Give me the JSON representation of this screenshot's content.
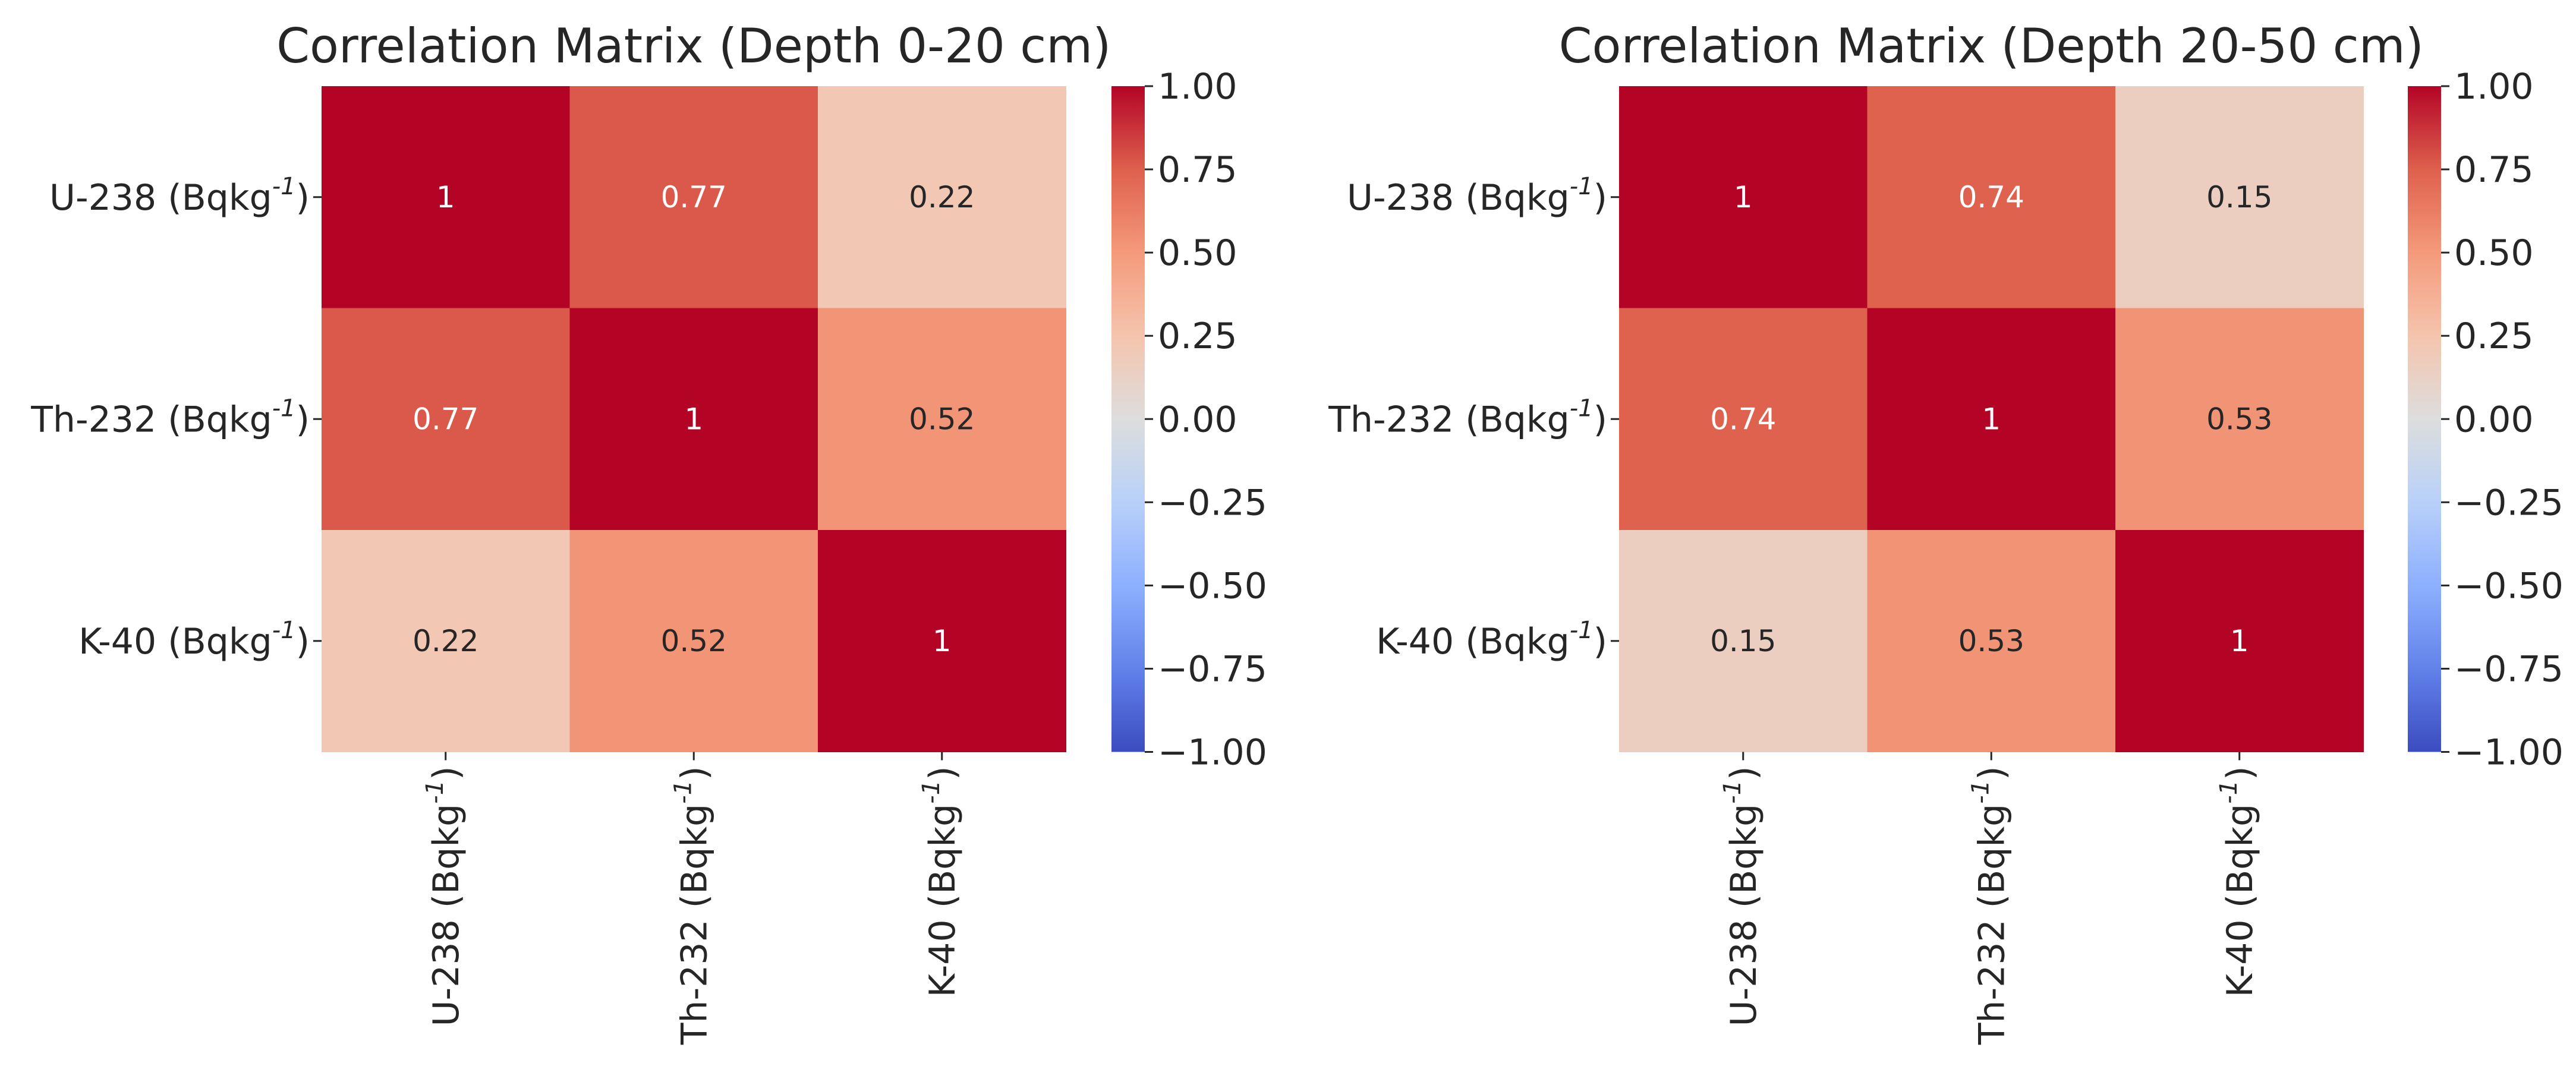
{
  "chart_data": [
    {
      "type": "heatmap",
      "title": "Correlation Matrix (Depth 0-20 cm)",
      "rows": [
        {
          "name": "U-238",
          "unit": "Bqkg",
          "sup": "-1"
        },
        {
          "name": "Th-232",
          "unit": "Bqkg",
          "sup": "-1"
        },
        {
          "name": "K-40",
          "unit": "Bqkg",
          "sup": "-1"
        }
      ],
      "columns": [
        {
          "name": "U-238",
          "unit": "Bqkg",
          "sup": "-1"
        },
        {
          "name": "Th-232",
          "unit": "Bqkg",
          "sup": "-1"
        },
        {
          "name": "K-40",
          "unit": "Bqkg",
          "sup": "-1"
        }
      ],
      "values": [
        [
          1,
          0.77,
          0.22
        ],
        [
          0.77,
          1,
          0.52
        ],
        [
          0.22,
          0.52,
          1
        ]
      ],
      "value_labels": [
        [
          "1",
          "0.77",
          "0.22"
        ],
        [
          "0.77",
          "1",
          "0.52"
        ],
        [
          "0.22",
          "0.52",
          "1"
        ]
      ],
      "colormap": "coolwarm",
      "vmin": -1,
      "vmax": 1,
      "colorbar_ticks": [
        "1.00",
        "0.75",
        "0.50",
        "0.25",
        "0.00",
        "−0.25",
        "−0.50",
        "−0.75",
        "−1.00"
      ],
      "colorbar_tick_values": [
        1.0,
        0.75,
        0.5,
        0.25,
        0.0,
        -0.25,
        -0.5,
        -0.75,
        -1.0
      ]
    },
    {
      "type": "heatmap",
      "title": "Correlation Matrix (Depth 20-50 cm)",
      "rows": [
        {
          "name": "U-238",
          "unit": "Bqkg",
          "sup": "-1"
        },
        {
          "name": "Th-232",
          "unit": "Bqkg",
          "sup": "-1"
        },
        {
          "name": "K-40",
          "unit": "Bqkg",
          "sup": "-1"
        }
      ],
      "columns": [
        {
          "name": "U-238",
          "unit": "Bqkg",
          "sup": "-1"
        },
        {
          "name": "Th-232",
          "unit": "Bqkg",
          "sup": "-1"
        },
        {
          "name": "K-40",
          "unit": "Bqkg",
          "sup": "-1"
        }
      ],
      "values": [
        [
          1,
          0.74,
          0.15
        ],
        [
          0.74,
          1,
          0.53
        ],
        [
          0.15,
          0.53,
          1
        ]
      ],
      "value_labels": [
        [
          "1",
          "0.74",
          "0.15"
        ],
        [
          "0.74",
          "1",
          "0.53"
        ],
        [
          "0.15",
          "0.53",
          "1"
        ]
      ],
      "colormap": "coolwarm",
      "vmin": -1,
      "vmax": 1,
      "colorbar_ticks": [
        "1.00",
        "0.75",
        "0.50",
        "0.25",
        "0.00",
        "−0.25",
        "−0.50",
        "−0.75",
        "−1.00"
      ],
      "colorbar_tick_values": [
        1.0,
        0.75,
        0.5,
        0.25,
        0.0,
        -0.25,
        -0.5,
        -0.75,
        -1.0
      ]
    }
  ]
}
